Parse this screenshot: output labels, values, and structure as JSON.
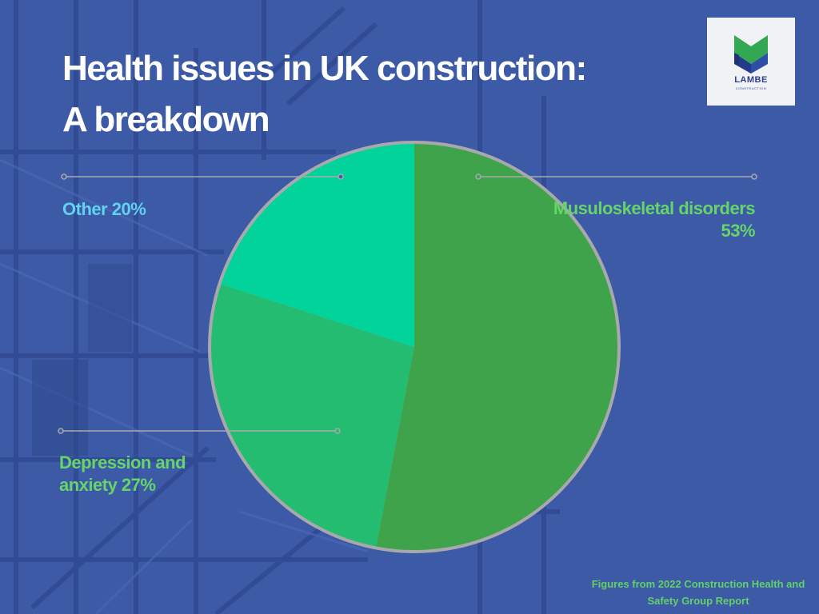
{
  "chart_data": {
    "type": "pie",
    "title": "Health issues in UK construction: A breakdown",
    "slices": [
      {
        "label": "Musuloskeletal disorders",
        "value": 53,
        "color": "#3fa34b",
        "display_label": "Musuloskeletal disorders 53%"
      },
      {
        "label": "Depression and anxiety",
        "value": 27,
        "color": "#23bc70",
        "display_label": "Depression and anxiety 27%"
      },
      {
        "label": "Other",
        "value": 20,
        "color": "#02d39b",
        "display_label": "Other 20%"
      }
    ],
    "rim_color": "#a9a9ad",
    "label_color_green": "#67d46a",
    "label_color_cyan": "#5fd3ef",
    "source_note": "Figures from 2022 Construction Health and Safety Group Report"
  },
  "title_line1": "Health issues in UK construction:",
  "title_line2": "A breakdown",
  "logo": {
    "name": "LAMBE",
    "subtitle": "CONSTRUCTION"
  },
  "background_color": "#3d5aa6"
}
